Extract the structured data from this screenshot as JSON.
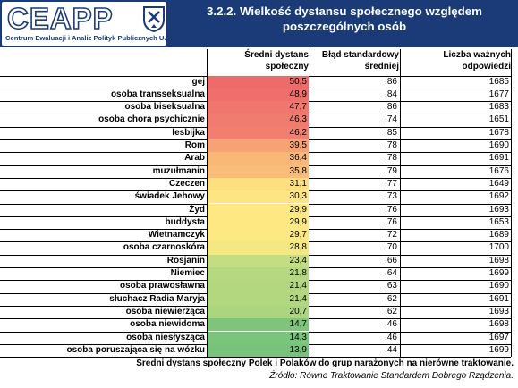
{
  "header": {
    "logo_text": "CEAPP",
    "logo_subtitle": "Centrum Ewaluacji i Analiz Polityk Publicznych UJ",
    "title": "3.2.2. Wielkość dystansu społecznego względem poszczególnych osób"
  },
  "colors": {
    "header_bg": "#1a3a78"
  },
  "chart_data": {
    "type": "table",
    "columns": [
      "Średni dystans społeczny",
      "Błąd standardowy średniej",
      "Liczba ważnych odpowiedzi"
    ],
    "rows": [
      {
        "label": "gej",
        "mean": "50,5",
        "se": ",86",
        "n": "1685",
        "color": "#ef6b6b"
      },
      {
        "label": "osoba transseksualna",
        "mean": "48,9",
        "se": ",84",
        "n": "1677",
        "color": "#f06f6d"
      },
      {
        "label": "osoba biseksualna",
        "mean": "47,7",
        "se": ",86",
        "n": "1683",
        "color": "#f0766e"
      },
      {
        "label": "osoba chora psychicznie",
        "mean": "46,3",
        "se": ",74",
        "n": "1651",
        "color": "#f07c6f"
      },
      {
        "label": "lesbijka",
        "mean": "46,2",
        "se": ",85",
        "n": "1678",
        "color": "#f07f70"
      },
      {
        "label": "Rom",
        "mean": "39,5",
        "se": ",78",
        "n": "1690",
        "color": "#f6a274"
      },
      {
        "label": "Arab",
        "mean": "36,4",
        "se": ",78",
        "n": "1691",
        "color": "#f9b878"
      },
      {
        "label": "muzułmanin",
        "mean": "35,8",
        "se": ",79",
        "n": "1676",
        "color": "#fabd79"
      },
      {
        "label": "Czeczen",
        "mean": "31,1",
        "se": ",77",
        "n": "1649",
        "color": "#fddf7f"
      },
      {
        "label": "świadek Jehowy",
        "mean": "30,3",
        "se": ",73",
        "n": "1692",
        "color": "#fde581"
      },
      {
        "label": "Żyd",
        "mean": "29,9",
        "se": ",76",
        "n": "1693",
        "color": "#fde881"
      },
      {
        "label": "buddysta",
        "mean": "29,9",
        "se": ",76",
        "n": "1653",
        "color": "#fde881"
      },
      {
        "label": "Wietnamczyk",
        "mean": "29,7",
        "se": ",72",
        "n": "1689",
        "color": "#fde982"
      },
      {
        "label": "osoba czarnoskóra",
        "mean": "28,8",
        "se": ",70",
        "n": "1700",
        "color": "#f4e883"
      },
      {
        "label": "Rosjanin",
        "mean": "23,4",
        "se": ",66",
        "n": "1698",
        "color": "#c5dd82"
      },
      {
        "label": "Niemiec",
        "mean": "21,8",
        "se": ",64",
        "n": "1699",
        "color": "#b5d880"
      },
      {
        "label": "osoba prawosławna",
        "mean": "21,4",
        "se": ",63",
        "n": "1690",
        "color": "#b2d77f"
      },
      {
        "label": "słuchacz Radia Maryja",
        "mean": "21,4",
        "se": ",62",
        "n": "1691",
        "color": "#b2d77f"
      },
      {
        "label": "osoba niewierząca",
        "mean": "20,7",
        "se": ",62",
        "n": "1693",
        "color": "#abd57f"
      },
      {
        "label": "osoba niewidoma",
        "mean": "14,7",
        "se": ",46",
        "n": "1698",
        "color": "#7ec57b"
      },
      {
        "label": "osoba niesłysząca",
        "mean": "14,3",
        "se": ",46",
        "n": "1697",
        "color": "#7bc47b"
      },
      {
        "label": "osoba poruszająca się na wózku",
        "mean": "13,9",
        "se": ",44",
        "n": "1699",
        "color": "#78c37b"
      }
    ]
  },
  "footer": {
    "caption": "Średni dystans społeczny Polek i Polaków do grup narażonych na nierówne traktowanie.",
    "source": "Źródło: Równe Traktowanie Standardem Dobrego Rządzenia."
  }
}
